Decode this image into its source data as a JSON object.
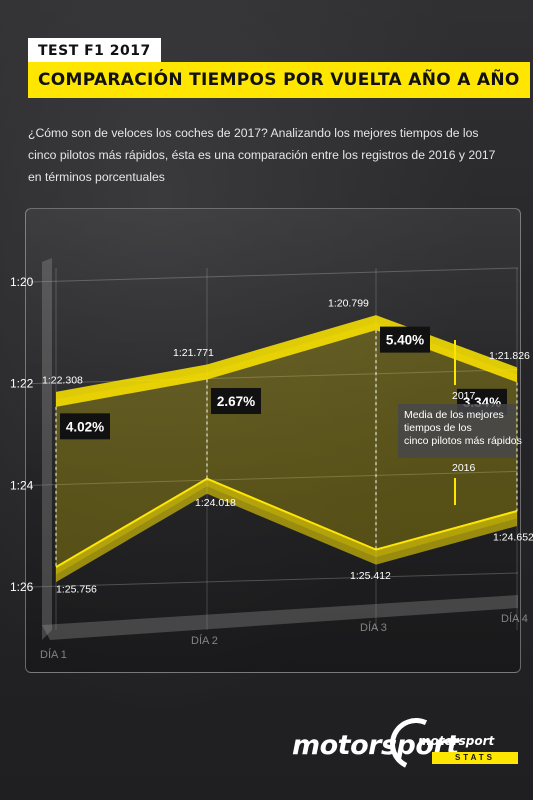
{
  "header": {
    "tag": "TEST F1 2017",
    "title": "COMPARACIÓN TIEMPOS POR VUELTA AÑO A AÑO"
  },
  "intro": "¿Cómo son de veloces los coches de 2017? Analizando los mejores tiempos de los cinco pilotos más rápidos, ésta es una comparación entre los registros de 2016 y 2017 en términos porcentuales",
  "chart_data": {
    "type": "area",
    "categories": [
      "DÍA 1",
      "DÍA 2",
      "DÍA 3",
      "DÍA 4"
    ],
    "y_tick_labels": [
      "1:20",
      "1:22",
      "1:24",
      "1:26"
    ],
    "ylim_seconds": [
      80,
      86
    ],
    "y_inverted": true,
    "series": [
      {
        "name": "2017",
        "labels": [
          "1:22.308",
          "1:21.771",
          "1:20.799",
          "1:21.826"
        ],
        "values": [
          82.308,
          81.771,
          80.799,
          81.826
        ],
        "color": "#ffe600"
      },
      {
        "name": "2016",
        "labels": [
          "1:25.756",
          "1:24.018",
          "1:25.412",
          "1:24.652"
        ],
        "values": [
          85.756,
          84.018,
          85.412,
          84.652
        ],
        "color": "#ffe600"
      }
    ],
    "percent_labels": [
      "4.02%",
      "2.67%",
      "5.40%",
      "3.34%"
    ],
    "legend_note": "Media de los mejores tiempos de los cinco pilotos más rápidos"
  },
  "brand": {
    "name": "motorsport",
    "small": "motorsport",
    "stats": "STATS"
  }
}
